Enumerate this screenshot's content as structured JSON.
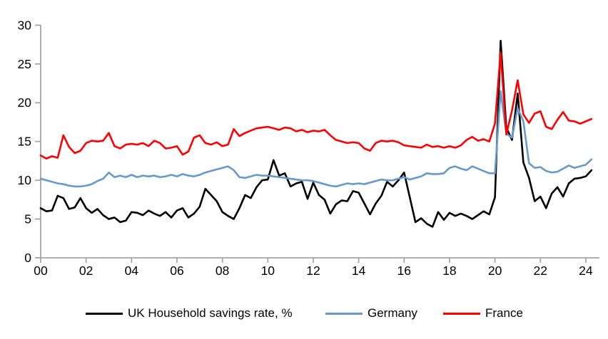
{
  "chart_data": {
    "type": "line",
    "title": "",
    "frequency": "quarterly",
    "x_range_labels": [
      "2000Q1",
      "2024Q2"
    ],
    "grid": false,
    "legend_position": "bottom",
    "axis_color": "#A6A6A6",
    "label_color": "#000000",
    "background": "#FFFFFF",
    "y_axis": {
      "min": 0,
      "max": 30,
      "tick_interval": 5,
      "tick_values": [
        0,
        5,
        10,
        15,
        20,
        25,
        30
      ],
      "tick_labels": [
        "0",
        "5",
        "10",
        "15",
        "20",
        "25",
        "30"
      ]
    },
    "x_axis": {
      "tick_years": [
        0,
        2,
        4,
        6,
        8,
        10,
        12,
        14,
        16,
        18,
        20,
        22,
        24
      ],
      "tick_labels": [
        "00",
        "02",
        "04",
        "06",
        "08",
        "10",
        "12",
        "14",
        "16",
        "18",
        "20",
        "22",
        "24"
      ]
    },
    "series": [
      {
        "name": "UK Household savings rate, %",
        "color": "#000000",
        "values": [
          6.4,
          6.0,
          6.1,
          8.0,
          7.7,
          6.3,
          6.5,
          7.7,
          6.4,
          5.8,
          6.3,
          5.5,
          5.0,
          5.2,
          4.6,
          4.8,
          5.9,
          5.8,
          5.5,
          6.1,
          5.7,
          5.4,
          5.9,
          5.2,
          6.1,
          6.4,
          5.2,
          5.7,
          6.6,
          8.9,
          8.1,
          7.3,
          5.9,
          5.4,
          5.0,
          6.4,
          8.1,
          7.7,
          9.1,
          10.0,
          10.1,
          12.6,
          10.6,
          10.9,
          9.2,
          9.6,
          9.8,
          7.6,
          9.7,
          8.1,
          7.5,
          5.7,
          6.9,
          7.4,
          7.3,
          8.6,
          8.4,
          7.0,
          5.6,
          7.0,
          8.0,
          9.8,
          9.2,
          10.0,
          11.0,
          7.8,
          4.6,
          5.1,
          4.4,
          4.0,
          5.9,
          4.9,
          5.8,
          5.4,
          5.7,
          5.4,
          5.0,
          5.5,
          6.0,
          5.6,
          7.8,
          28.0,
          16.8,
          15.2,
          21.2,
          12.3,
          10.3,
          7.3,
          7.9,
          6.4,
          8.3,
          9.1,
          7.9,
          9.6,
          10.2,
          10.3,
          10.5,
          11.3
        ]
      },
      {
        "name": "Germany",
        "color": "#6699CC",
        "values": [
          10.2,
          10.0,
          9.8,
          9.6,
          9.5,
          9.3,
          9.2,
          9.2,
          9.3,
          9.5,
          9.9,
          10.2,
          11.0,
          10.4,
          10.6,
          10.4,
          10.7,
          10.4,
          10.6,
          10.5,
          10.6,
          10.4,
          10.5,
          10.7,
          10.5,
          10.8,
          10.6,
          10.5,
          10.7,
          11.0,
          11.2,
          11.4,
          11.6,
          11.8,
          11.3,
          10.4,
          10.3,
          10.5,
          10.7,
          10.6,
          10.6,
          10.5,
          10.4,
          10.3,
          10.2,
          10.1,
          10.0,
          10.0,
          9.9,
          9.7,
          9.5,
          9.3,
          9.2,
          9.4,
          9.6,
          9.5,
          9.6,
          9.5,
          9.7,
          9.9,
          10.1,
          10.0,
          10.0,
          10.2,
          10.4,
          10.1,
          10.3,
          10.5,
          10.9,
          10.8,
          10.8,
          10.9,
          11.6,
          11.8,
          11.5,
          11.3,
          11.8,
          11.5,
          11.2,
          10.9,
          10.9,
          21.5,
          16.0,
          15.5,
          19.3,
          17.6,
          12.2,
          11.6,
          11.7,
          11.2,
          11.0,
          11.1,
          11.5,
          11.9,
          11.6,
          11.8,
          12.0,
          12.7
        ]
      },
      {
        "name": "France",
        "color": "#FF0000",
        "values": [
          13.2,
          12.8,
          13.1,
          12.9,
          15.8,
          14.3,
          13.5,
          13.8,
          14.8,
          15.1,
          15.0,
          15.1,
          16.1,
          14.4,
          14.1,
          14.6,
          14.7,
          14.6,
          14.8,
          14.4,
          15.1,
          14.8,
          14.1,
          14.2,
          14.4,
          13.3,
          13.7,
          15.5,
          15.8,
          14.8,
          14.6,
          14.9,
          14.4,
          14.6,
          16.6,
          15.7,
          16.1,
          16.4,
          16.7,
          16.8,
          16.9,
          16.7,
          16.5,
          16.8,
          16.7,
          16.3,
          16.5,
          16.2,
          16.4,
          16.3,
          16.5,
          15.8,
          15.2,
          15.0,
          14.8,
          14.9,
          14.8,
          14.1,
          13.8,
          14.8,
          15.1,
          15.0,
          15.1,
          14.9,
          14.5,
          14.4,
          14.3,
          14.2,
          14.6,
          14.3,
          14.4,
          14.2,
          14.4,
          14.2,
          14.5,
          15.2,
          15.6,
          15.1,
          15.3,
          15.0,
          17.3,
          26.5,
          15.9,
          19.0,
          22.9,
          18.5,
          17.4,
          18.6,
          18.9,
          16.9,
          16.6,
          17.8,
          18.8,
          17.7,
          17.6,
          17.3,
          17.6,
          17.9
        ]
      }
    ],
    "legend": {
      "items": [
        "UK Household savings rate, %",
        "Germany",
        "France"
      ]
    }
  }
}
